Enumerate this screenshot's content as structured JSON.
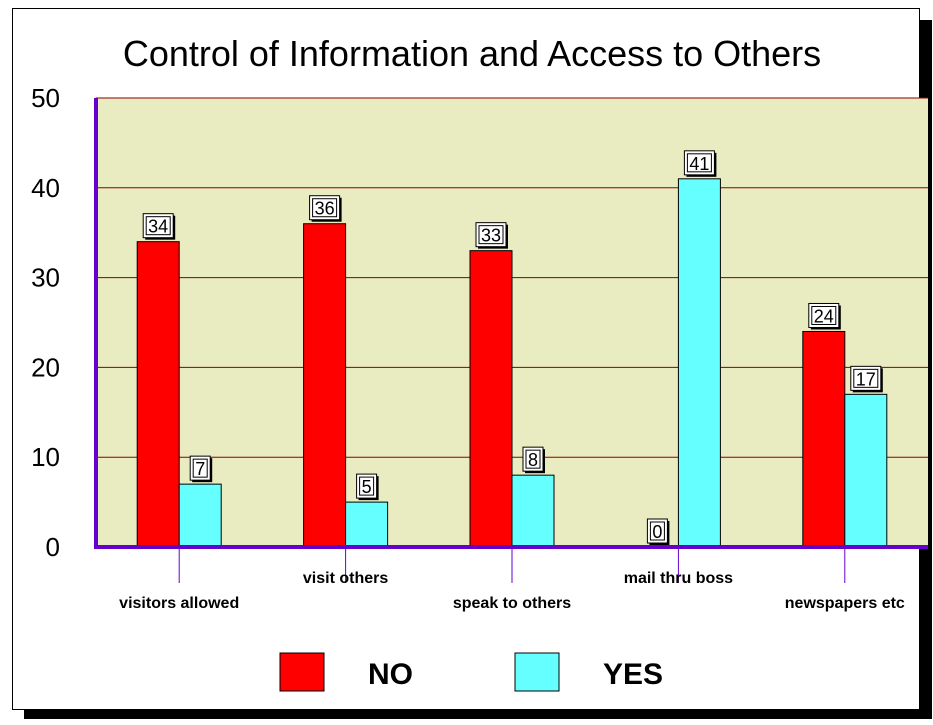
{
  "chart_data": {
    "type": "bar",
    "title": "Control of Information and Access to Others",
    "xlabel": "",
    "ylabel": "",
    "categories": [
      "visitors allowed",
      "visit others",
      "speak to others",
      "mail thru boss",
      "newspapers etc"
    ],
    "series": [
      {
        "name": "NO",
        "values": [
          34,
          36,
          33,
          0,
          24
        ],
        "color": "#ff0000"
      },
      {
        "name": "YES",
        "values": [
          7,
          5,
          8,
          41,
          17
        ],
        "color": "#66ffff"
      }
    ],
    "ylim": [
      0,
      50
    ],
    "yticks": [
      "0",
      "10",
      "20",
      "30",
      "40",
      "50"
    ],
    "grid": true,
    "legend_position": "bottom",
    "plot_background": "#e8ecc0",
    "gridline_color": "#8b0000",
    "axis_color": "#6600cc"
  }
}
